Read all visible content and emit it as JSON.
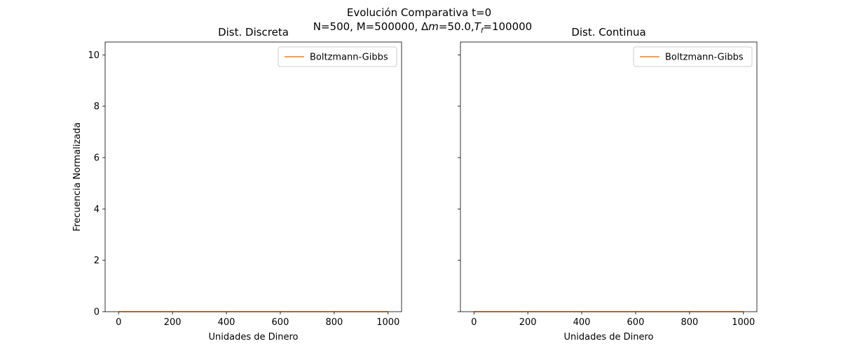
{
  "figure": {
    "suptitle_line1": "Evolución Comparativa t=0",
    "suptitle_line2_prefix": "N=500, M=500000, Δ",
    "suptitle_m": "m",
    "suptitle_mid": "=50.0,",
    "suptitle_T": "T",
    "suptitle_f": "f",
    "suptitle_end": "=100000"
  },
  "chart_data": [
    {
      "type": "line",
      "title": "Dist. Discreta",
      "xlabel": "Unidades de Dinero",
      "ylabel": "Frecuencia Normalizada",
      "xlim": [
        -50,
        1050
      ],
      "ylim": [
        0,
        10.5
      ],
      "xticks": [
        0,
        200,
        400,
        600,
        800,
        1000
      ],
      "yticks": [
        0,
        2,
        4,
        6,
        8,
        10
      ],
      "legend_position": "upper right",
      "grid": false,
      "series": [
        {
          "name": "Boltzmann-Gibbs",
          "color": "#ff7f0e",
          "x": [
            0,
            1000
          ],
          "y": [
            0.001,
            0.0
          ]
        }
      ]
    },
    {
      "type": "line",
      "title": "Dist. Continua",
      "xlabel": "Unidades de Dinero",
      "ylabel": "",
      "xlim": [
        -50,
        1050
      ],
      "ylim": [
        0,
        10.5
      ],
      "xticks": [
        0,
        200,
        400,
        600,
        800,
        1000
      ],
      "yticks": [
        0,
        2,
        4,
        6,
        8,
        10
      ],
      "show_ytick_labels": false,
      "legend_position": "upper right",
      "grid": false,
      "series": [
        {
          "name": "Boltzmann-Gibbs",
          "color": "#ff7f0e",
          "x": [
            0,
            1000
          ],
          "y": [
            0.001,
            0.0
          ]
        }
      ]
    }
  ]
}
